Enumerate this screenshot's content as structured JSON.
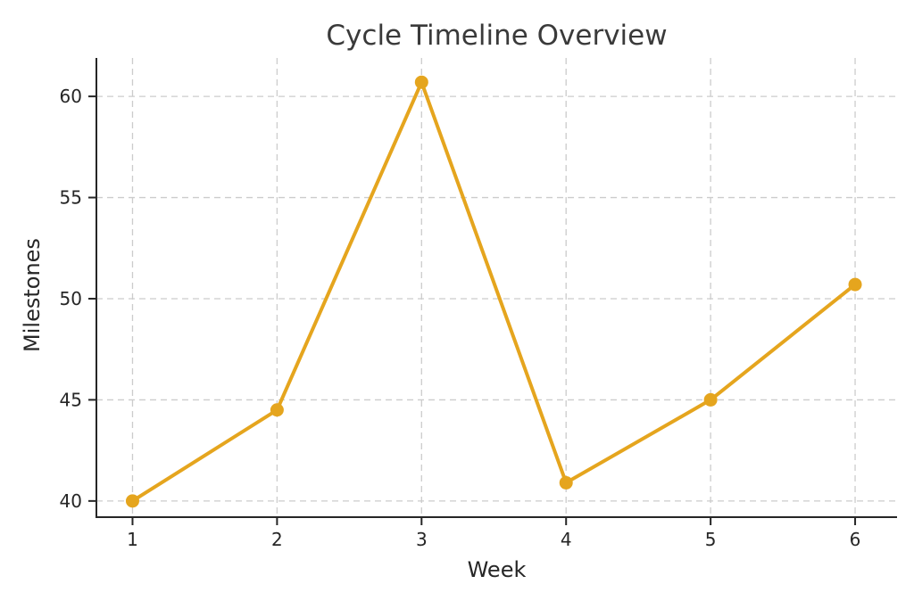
{
  "chart_data": {
    "type": "line",
    "title": "Cycle Timeline Overview",
    "xlabel": "Week",
    "ylabel": "Milestones",
    "x": [
      1,
      2,
      3,
      4,
      5,
      6
    ],
    "series": [
      {
        "name": "Milestones",
        "values": [
          40.0,
          44.5,
          60.7,
          40.9,
          45.0,
          50.7
        ]
      }
    ],
    "xticks": [
      1,
      2,
      3,
      4,
      5,
      6
    ],
    "yticks": [
      40,
      45,
      50,
      55,
      60
    ],
    "xlim": [
      0.75,
      6.29
    ],
    "ylim": [
      39.2,
      61.9
    ],
    "grid": "both-dashed",
    "legend_position": "none",
    "line_color": "#E5A51E",
    "marker": "circle",
    "marker_color": "#E5A51E",
    "grid_color": "#cccccc",
    "axis_color": "#262626",
    "title_color": "#3a3a3a",
    "background_color": "#ffffff"
  }
}
